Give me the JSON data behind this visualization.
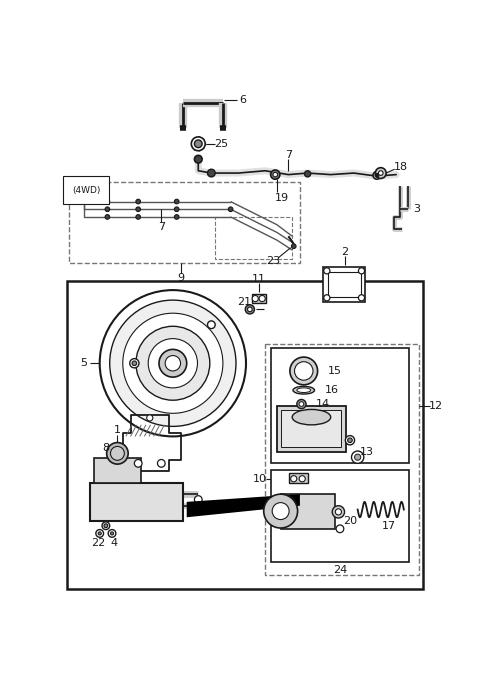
{
  "bg_color": "#ffffff",
  "line_color": "#1a1a1a",
  "gray_light": "#dddddd",
  "gray_mid": "#aaaaaa",
  "gray_dark": "#555555",
  "figsize": [
    4.8,
    6.85
  ],
  "dpi": 100
}
